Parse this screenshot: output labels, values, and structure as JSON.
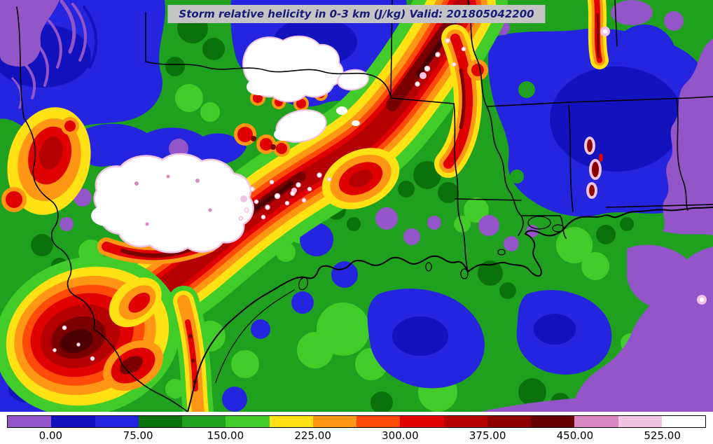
{
  "title": "Storm relative helicity in 0-3 km (J/kg) Valid: 201805042200",
  "field_name": "Storm relative helicity in 0-3 km",
  "unit": "J/kg",
  "valid_time": "201805042200",
  "colorbar": {
    "orientation": "horizontal",
    "ticks": [
      "0.00",
      "75.00",
      "150.00",
      "225.00",
      "300.00",
      "375.00",
      "450.00",
      "525.00"
    ],
    "tick_values": [
      0,
      75,
      150,
      225,
      300,
      375,
      450,
      525
    ],
    "levels": [
      -37.5,
      0,
      37.5,
      75,
      112.5,
      150,
      187.5,
      225,
      262.5,
      300,
      337.5,
      375,
      412.5,
      450,
      487.5,
      525,
      562.5
    ],
    "colors": [
      "#9455C8",
      "#1212BE",
      "#2525E0",
      "#0B720B",
      "#1FA11F",
      "#42CC29",
      "#FFE114",
      "#FF9614",
      "#FF4B0A",
      "#E00000",
      "#B40000",
      "#8C0000",
      "#640000",
      "#D887C0",
      "#F2C4E4",
      "#FFFFFF"
    ]
  },
  "style": {
    "title_bg": "#C4C4C4",
    "title_color": "#1A1A78",
    "border_color": "#000000"
  }
}
